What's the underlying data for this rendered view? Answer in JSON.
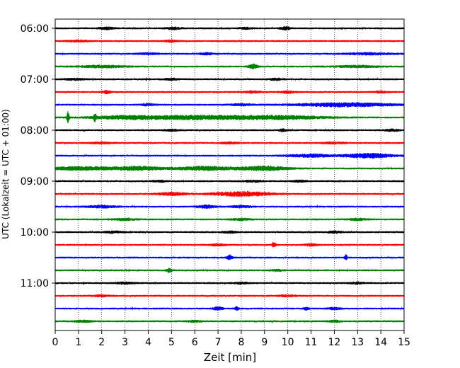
{
  "chart_data": {
    "type": "line",
    "title": "",
    "xlabel": "Zeit  [min]",
    "ylabel": "UTC (Lokalzeit = UTC + 01:00)",
    "xlim": [
      0,
      15
    ],
    "x_ticks": [
      0,
      1,
      2,
      3,
      4,
      5,
      6,
      7,
      8,
      9,
      10,
      11,
      12,
      13,
      14,
      15
    ],
    "y_tick_labels": [
      "06:00",
      "07:00",
      "08:00",
      "09:00",
      "10:00",
      "11:00"
    ],
    "trace_interval_min": 15,
    "grid": "vertical dotted at each minute",
    "trace_colors": [
      "#000000",
      "#ff0000",
      "#0000ff",
      "#008000"
    ],
    "traces": [
      {
        "start": "06:00",
        "color": "black",
        "events": [
          [
            2.2,
            0.3,
            1.5
          ],
          [
            5.1,
            0.3,
            1.5
          ],
          [
            8.2,
            0.3,
            1.2
          ],
          [
            9.9,
            0.2,
            2.0
          ]
        ]
      },
      {
        "start": "06:15",
        "color": "red",
        "events": [
          [
            1.0,
            0.5,
            1.0
          ],
          [
            5.0,
            0.3,
            1.2
          ]
        ]
      },
      {
        "start": "06:30",
        "color": "blue",
        "events": [
          [
            4.0,
            0.4,
            1.2
          ],
          [
            6.5,
            0.3,
            1.2
          ],
          [
            13.5,
            1.0,
            1.2
          ]
        ]
      },
      {
        "start": "06:45",
        "color": "green",
        "events": [
          [
            2.0,
            1.0,
            1.5
          ],
          [
            8.5,
            0.2,
            3.0
          ],
          [
            13.0,
            1.0,
            1.2
          ]
        ]
      },
      {
        "start": "07:00",
        "color": "black",
        "events": [
          [
            0.8,
            0.4,
            1.2
          ],
          [
            5.0,
            0.3,
            1.2
          ],
          [
            9.5,
            0.3,
            1.2
          ]
        ]
      },
      {
        "start": "07:15",
        "color": "red",
        "events": [
          [
            2.2,
            0.2,
            2.0
          ],
          [
            8.5,
            0.4,
            1.2
          ],
          [
            10.0,
            0.3,
            1.5
          ],
          [
            14.0,
            0.3,
            1.2
          ]
        ]
      },
      {
        "start": "07:30",
        "color": "blue",
        "events": [
          [
            4.0,
            0.3,
            1.2
          ],
          [
            8.0,
            0.5,
            1.2
          ],
          [
            12.5,
            2.0,
            2.5
          ]
        ]
      },
      {
        "start": "07:45",
        "color": "green",
        "events": [
          [
            0.55,
            0.05,
            8.0
          ],
          [
            1.7,
            0.05,
            7.0
          ],
          [
            3.0,
            1.5,
            2.2
          ],
          [
            6.0,
            2.0,
            2.5
          ],
          [
            9.5,
            2.0,
            2.5
          ]
        ]
      },
      {
        "start": "08:00",
        "color": "black",
        "events": [
          [
            5.0,
            0.3,
            1.2
          ],
          [
            9.8,
            0.2,
            1.5
          ],
          [
            14.5,
            0.3,
            1.2
          ]
        ]
      },
      {
        "start": "08:15",
        "color": "red",
        "events": [
          [
            2.0,
            0.5,
            1.0
          ],
          [
            7.5,
            0.4,
            1.0
          ],
          [
            12.0,
            0.5,
            1.0
          ]
        ]
      },
      {
        "start": "08:30",
        "color": "blue",
        "events": [
          [
            11.0,
            1.0,
            1.8
          ],
          [
            13.5,
            1.0,
            3.0
          ]
        ]
      },
      {
        "start": "08:45",
        "color": "green",
        "events": [
          [
            1.0,
            1.2,
            2.2
          ],
          [
            3.5,
            1.2,
            2.5
          ],
          [
            6.5,
            1.2,
            2.5
          ],
          [
            9.0,
            1.0,
            2.8
          ]
        ]
      },
      {
        "start": "09:00",
        "color": "black",
        "events": [
          [
            4.5,
            0.3,
            1.2
          ],
          [
            8.5,
            0.4,
            1.2
          ],
          [
            10.5,
            0.3,
            1.2
          ]
        ]
      },
      {
        "start": "09:15",
        "color": "red",
        "events": [
          [
            5.0,
            0.6,
            1.8
          ],
          [
            8.0,
            1.2,
            3.0
          ]
        ]
      },
      {
        "start": "09:30",
        "color": "blue",
        "events": [
          [
            2.0,
            0.6,
            1.5
          ],
          [
            6.5,
            0.4,
            1.8
          ],
          [
            8.0,
            0.4,
            1.5
          ]
        ]
      },
      {
        "start": "09:45",
        "color": "green",
        "events": [
          [
            3.0,
            0.5,
            1.2
          ],
          [
            8.0,
            0.4,
            1.2
          ],
          [
            13.0,
            0.4,
            1.2
          ]
        ]
      },
      {
        "start": "10:00",
        "color": "black",
        "events": [
          [
            2.5,
            0.4,
            1.2
          ],
          [
            7.5,
            0.3,
            1.2
          ],
          [
            12.0,
            0.3,
            1.2
          ]
        ]
      },
      {
        "start": "10:15",
        "color": "red",
        "events": [
          [
            7.0,
            0.3,
            1.2
          ],
          [
            9.4,
            0.08,
            4.0
          ],
          [
            11.0,
            0.3,
            1.2
          ]
        ]
      },
      {
        "start": "10:30",
        "color": "blue",
        "events": [
          [
            7.5,
            0.1,
            3.5
          ],
          [
            12.5,
            0.05,
            4.0
          ]
        ]
      },
      {
        "start": "10:45",
        "color": "green",
        "events": [
          [
            4.9,
            0.1,
            2.5
          ],
          [
            9.5,
            0.3,
            1.2
          ]
        ]
      },
      {
        "start": "11:00",
        "color": "black",
        "events": [
          [
            3.0,
            0.4,
            1.2
          ],
          [
            8.0,
            0.3,
            1.2
          ],
          [
            13.0,
            0.3,
            1.2
          ]
        ]
      },
      {
        "start": "11:15",
        "color": "red",
        "events": [
          [
            2.0,
            0.4,
            1.0
          ],
          [
            10.0,
            0.4,
            1.0
          ]
        ]
      },
      {
        "start": "11:30",
        "color": "blue",
        "events": [
          [
            7.0,
            0.2,
            2.0
          ],
          [
            7.8,
            0.1,
            2.5
          ],
          [
            10.8,
            0.1,
            2.0
          ],
          [
            12.0,
            0.3,
            1.2
          ]
        ]
      },
      {
        "start": "11:45",
        "color": "green",
        "events": [
          [
            1.2,
            0.4,
            1.2
          ],
          [
            6.0,
            0.3,
            1.2
          ],
          [
            12.0,
            0.3,
            1.2
          ]
        ]
      }
    ]
  }
}
